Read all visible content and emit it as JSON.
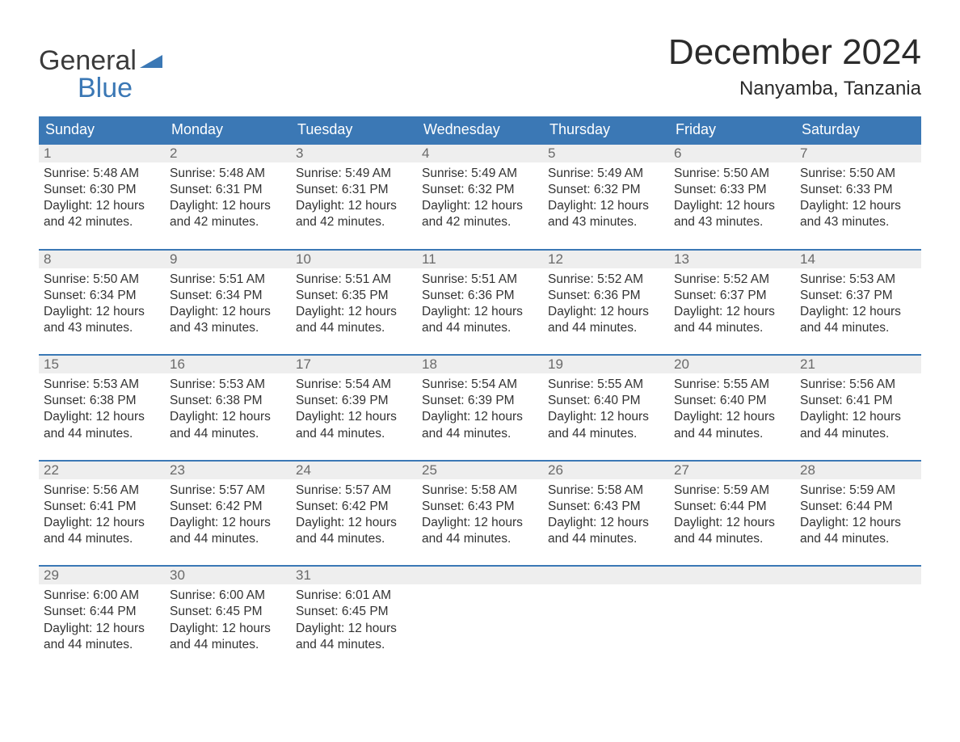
{
  "logo": {
    "line1": "General",
    "line2": "Blue"
  },
  "header": {
    "title": "December 2024",
    "location": "Nanyamba, Tanzania"
  },
  "colors": {
    "header_bg": "#3b78b5",
    "header_text": "#ffffff",
    "week_border": "#3b78b5",
    "daynum_bg": "#eeeeee",
    "daynum_text": "#6a6a6a",
    "body_text": "#333333",
    "page_bg": "#ffffff",
    "logo_blue": "#3b78b5"
  },
  "typography": {
    "title_fontsize": 44,
    "location_fontsize": 24,
    "header_cell_fontsize": 18,
    "daynum_fontsize": 17,
    "body_fontsize": 15.5
  },
  "calendar": {
    "type": "table",
    "columns": [
      "Sunday",
      "Monday",
      "Tuesday",
      "Wednesday",
      "Thursday",
      "Friday",
      "Saturday"
    ],
    "labels": {
      "sunrise": "Sunrise",
      "sunset": "Sunset",
      "daylight": "Daylight",
      "hours_word": "hours",
      "and_word": "and",
      "minutes_word": "minutes."
    },
    "days": [
      {
        "n": 1,
        "sunrise": "5:48 AM",
        "sunset": "6:30 PM",
        "dh": 12,
        "dm": 42
      },
      {
        "n": 2,
        "sunrise": "5:48 AM",
        "sunset": "6:31 PM",
        "dh": 12,
        "dm": 42
      },
      {
        "n": 3,
        "sunrise": "5:49 AM",
        "sunset": "6:31 PM",
        "dh": 12,
        "dm": 42
      },
      {
        "n": 4,
        "sunrise": "5:49 AM",
        "sunset": "6:32 PM",
        "dh": 12,
        "dm": 42
      },
      {
        "n": 5,
        "sunrise": "5:49 AM",
        "sunset": "6:32 PM",
        "dh": 12,
        "dm": 43
      },
      {
        "n": 6,
        "sunrise": "5:50 AM",
        "sunset": "6:33 PM",
        "dh": 12,
        "dm": 43
      },
      {
        "n": 7,
        "sunrise": "5:50 AM",
        "sunset": "6:33 PM",
        "dh": 12,
        "dm": 43
      },
      {
        "n": 8,
        "sunrise": "5:50 AM",
        "sunset": "6:34 PM",
        "dh": 12,
        "dm": 43
      },
      {
        "n": 9,
        "sunrise": "5:51 AM",
        "sunset": "6:34 PM",
        "dh": 12,
        "dm": 43
      },
      {
        "n": 10,
        "sunrise": "5:51 AM",
        "sunset": "6:35 PM",
        "dh": 12,
        "dm": 44
      },
      {
        "n": 11,
        "sunrise": "5:51 AM",
        "sunset": "6:36 PM",
        "dh": 12,
        "dm": 44
      },
      {
        "n": 12,
        "sunrise": "5:52 AM",
        "sunset": "6:36 PM",
        "dh": 12,
        "dm": 44
      },
      {
        "n": 13,
        "sunrise": "5:52 AM",
        "sunset": "6:37 PM",
        "dh": 12,
        "dm": 44
      },
      {
        "n": 14,
        "sunrise": "5:53 AM",
        "sunset": "6:37 PM",
        "dh": 12,
        "dm": 44
      },
      {
        "n": 15,
        "sunrise": "5:53 AM",
        "sunset": "6:38 PM",
        "dh": 12,
        "dm": 44
      },
      {
        "n": 16,
        "sunrise": "5:53 AM",
        "sunset": "6:38 PM",
        "dh": 12,
        "dm": 44
      },
      {
        "n": 17,
        "sunrise": "5:54 AM",
        "sunset": "6:39 PM",
        "dh": 12,
        "dm": 44
      },
      {
        "n": 18,
        "sunrise": "5:54 AM",
        "sunset": "6:39 PM",
        "dh": 12,
        "dm": 44
      },
      {
        "n": 19,
        "sunrise": "5:55 AM",
        "sunset": "6:40 PM",
        "dh": 12,
        "dm": 44
      },
      {
        "n": 20,
        "sunrise": "5:55 AM",
        "sunset": "6:40 PM",
        "dh": 12,
        "dm": 44
      },
      {
        "n": 21,
        "sunrise": "5:56 AM",
        "sunset": "6:41 PM",
        "dh": 12,
        "dm": 44
      },
      {
        "n": 22,
        "sunrise": "5:56 AM",
        "sunset": "6:41 PM",
        "dh": 12,
        "dm": 44
      },
      {
        "n": 23,
        "sunrise": "5:57 AM",
        "sunset": "6:42 PM",
        "dh": 12,
        "dm": 44
      },
      {
        "n": 24,
        "sunrise": "5:57 AM",
        "sunset": "6:42 PM",
        "dh": 12,
        "dm": 44
      },
      {
        "n": 25,
        "sunrise": "5:58 AM",
        "sunset": "6:43 PM",
        "dh": 12,
        "dm": 44
      },
      {
        "n": 26,
        "sunrise": "5:58 AM",
        "sunset": "6:43 PM",
        "dh": 12,
        "dm": 44
      },
      {
        "n": 27,
        "sunrise": "5:59 AM",
        "sunset": "6:44 PM",
        "dh": 12,
        "dm": 44
      },
      {
        "n": 28,
        "sunrise": "5:59 AM",
        "sunset": "6:44 PM",
        "dh": 12,
        "dm": 44
      },
      {
        "n": 29,
        "sunrise": "6:00 AM",
        "sunset": "6:44 PM",
        "dh": 12,
        "dm": 44
      },
      {
        "n": 30,
        "sunrise": "6:00 AM",
        "sunset": "6:45 PM",
        "dh": 12,
        "dm": 44
      },
      {
        "n": 31,
        "sunrise": "6:01 AM",
        "sunset": "6:45 PM",
        "dh": 12,
        "dm": 44
      }
    ],
    "start_weekday_index": 0,
    "weeks": 5
  }
}
